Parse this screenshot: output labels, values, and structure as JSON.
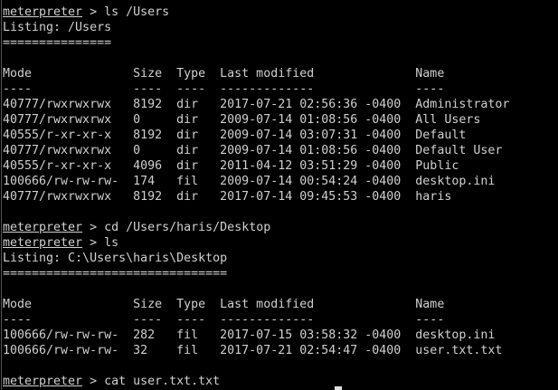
{
  "prompt": "meterpreter",
  "sections": [
    {
      "commands": [
        "ls /Users"
      ],
      "listing": "Listing: /Users",
      "underline": "===============",
      "headers": [
        "Mode",
        "Size",
        "Type",
        "Last modified",
        "Name"
      ],
      "dashes": [
        "----",
        "----",
        "----",
        "-------------",
        "----"
      ],
      "rows": [
        [
          "40777/rwxrwxrwx",
          "8192",
          "dir",
          "2017-07-21 02:56:36 -0400",
          "Administrator"
        ],
        [
          "40777/rwxrwxrwx",
          "0",
          "dir",
          "2009-07-14 01:08:56 -0400",
          "All Users"
        ],
        [
          "40555/r-xr-xr-x",
          "8192",
          "dir",
          "2009-07-14 03:07:31 -0400",
          "Default"
        ],
        [
          "40777/rwxrwxrwx",
          "0",
          "dir",
          "2009-07-14 01:08:56 -0400",
          "Default User"
        ],
        [
          "40555/r-xr-xr-x",
          "4096",
          "dir",
          "2011-04-12 03:51:29 -0400",
          "Public"
        ],
        [
          "100666/rw-rw-rw-",
          "174",
          "fil",
          "2009-07-14 00:54:24 -0400",
          "desktop.ini"
        ],
        [
          "40777/rwxrwxrwx",
          "8192",
          "dir",
          "2017-07-14 09:45:53 -0400",
          "haris"
        ]
      ]
    },
    {
      "commands": [
        "cd /Users/haris/Desktop",
        "ls"
      ],
      "listing": "Listing: C:\\Users\\haris\\Desktop",
      "underline": "===============================",
      "headers": [
        "Mode",
        "Size",
        "Type",
        "Last modified",
        "Name"
      ],
      "dashes": [
        "----",
        "----",
        "----",
        "-------------",
        "----"
      ],
      "rows": [
        [
          "100666/rw-rw-rw-",
          "282",
          "fil",
          "2017-07-15 03:58:32 -0400",
          "desktop.ini"
        ],
        [
          "100666/rw-rw-rw-",
          "32",
          "fil",
          "2017-07-21 02:54:47 -0400",
          "user.txt.txt"
        ]
      ]
    }
  ],
  "final_command": "cat user.txt.txt"
}
